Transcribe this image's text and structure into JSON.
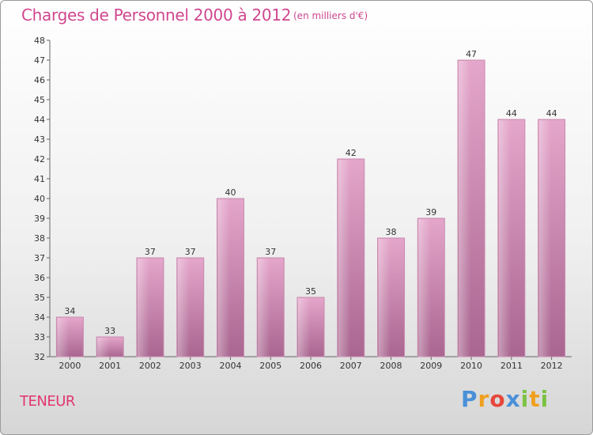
{
  "chart_data": {
    "type": "bar",
    "title": "Charges de Personnel 2000 à 2012",
    "subtitle": "(en milliers d'€)",
    "categories": [
      "2000",
      "2001",
      "2002",
      "2003",
      "2004",
      "2005",
      "2006",
      "2007",
      "2008",
      "2009",
      "2010",
      "2011",
      "2012"
    ],
    "values": [
      34,
      33,
      37,
      37,
      40,
      37,
      35,
      42,
      38,
      39,
      47,
      44,
      44
    ],
    "ylim": [
      32,
      48
    ],
    "ytick_step": 1,
    "xlabel": "",
    "ylabel": "",
    "grid": false,
    "bar_color": "#d77aab"
  },
  "footer": {
    "commune": "TENEUR",
    "brand_letters": [
      {
        "char": "P",
        "color": "#4a90d9"
      },
      {
        "char": "r",
        "color": "#f0a020"
      },
      {
        "char": "o",
        "color": "#e6463c"
      },
      {
        "char": "x",
        "color": "#4a90d9"
      },
      {
        "char": "i",
        "color": "#7cc243"
      },
      {
        "char": "t",
        "color": "#f0a020"
      },
      {
        "char": "i",
        "color": "#7cc243"
      }
    ]
  }
}
